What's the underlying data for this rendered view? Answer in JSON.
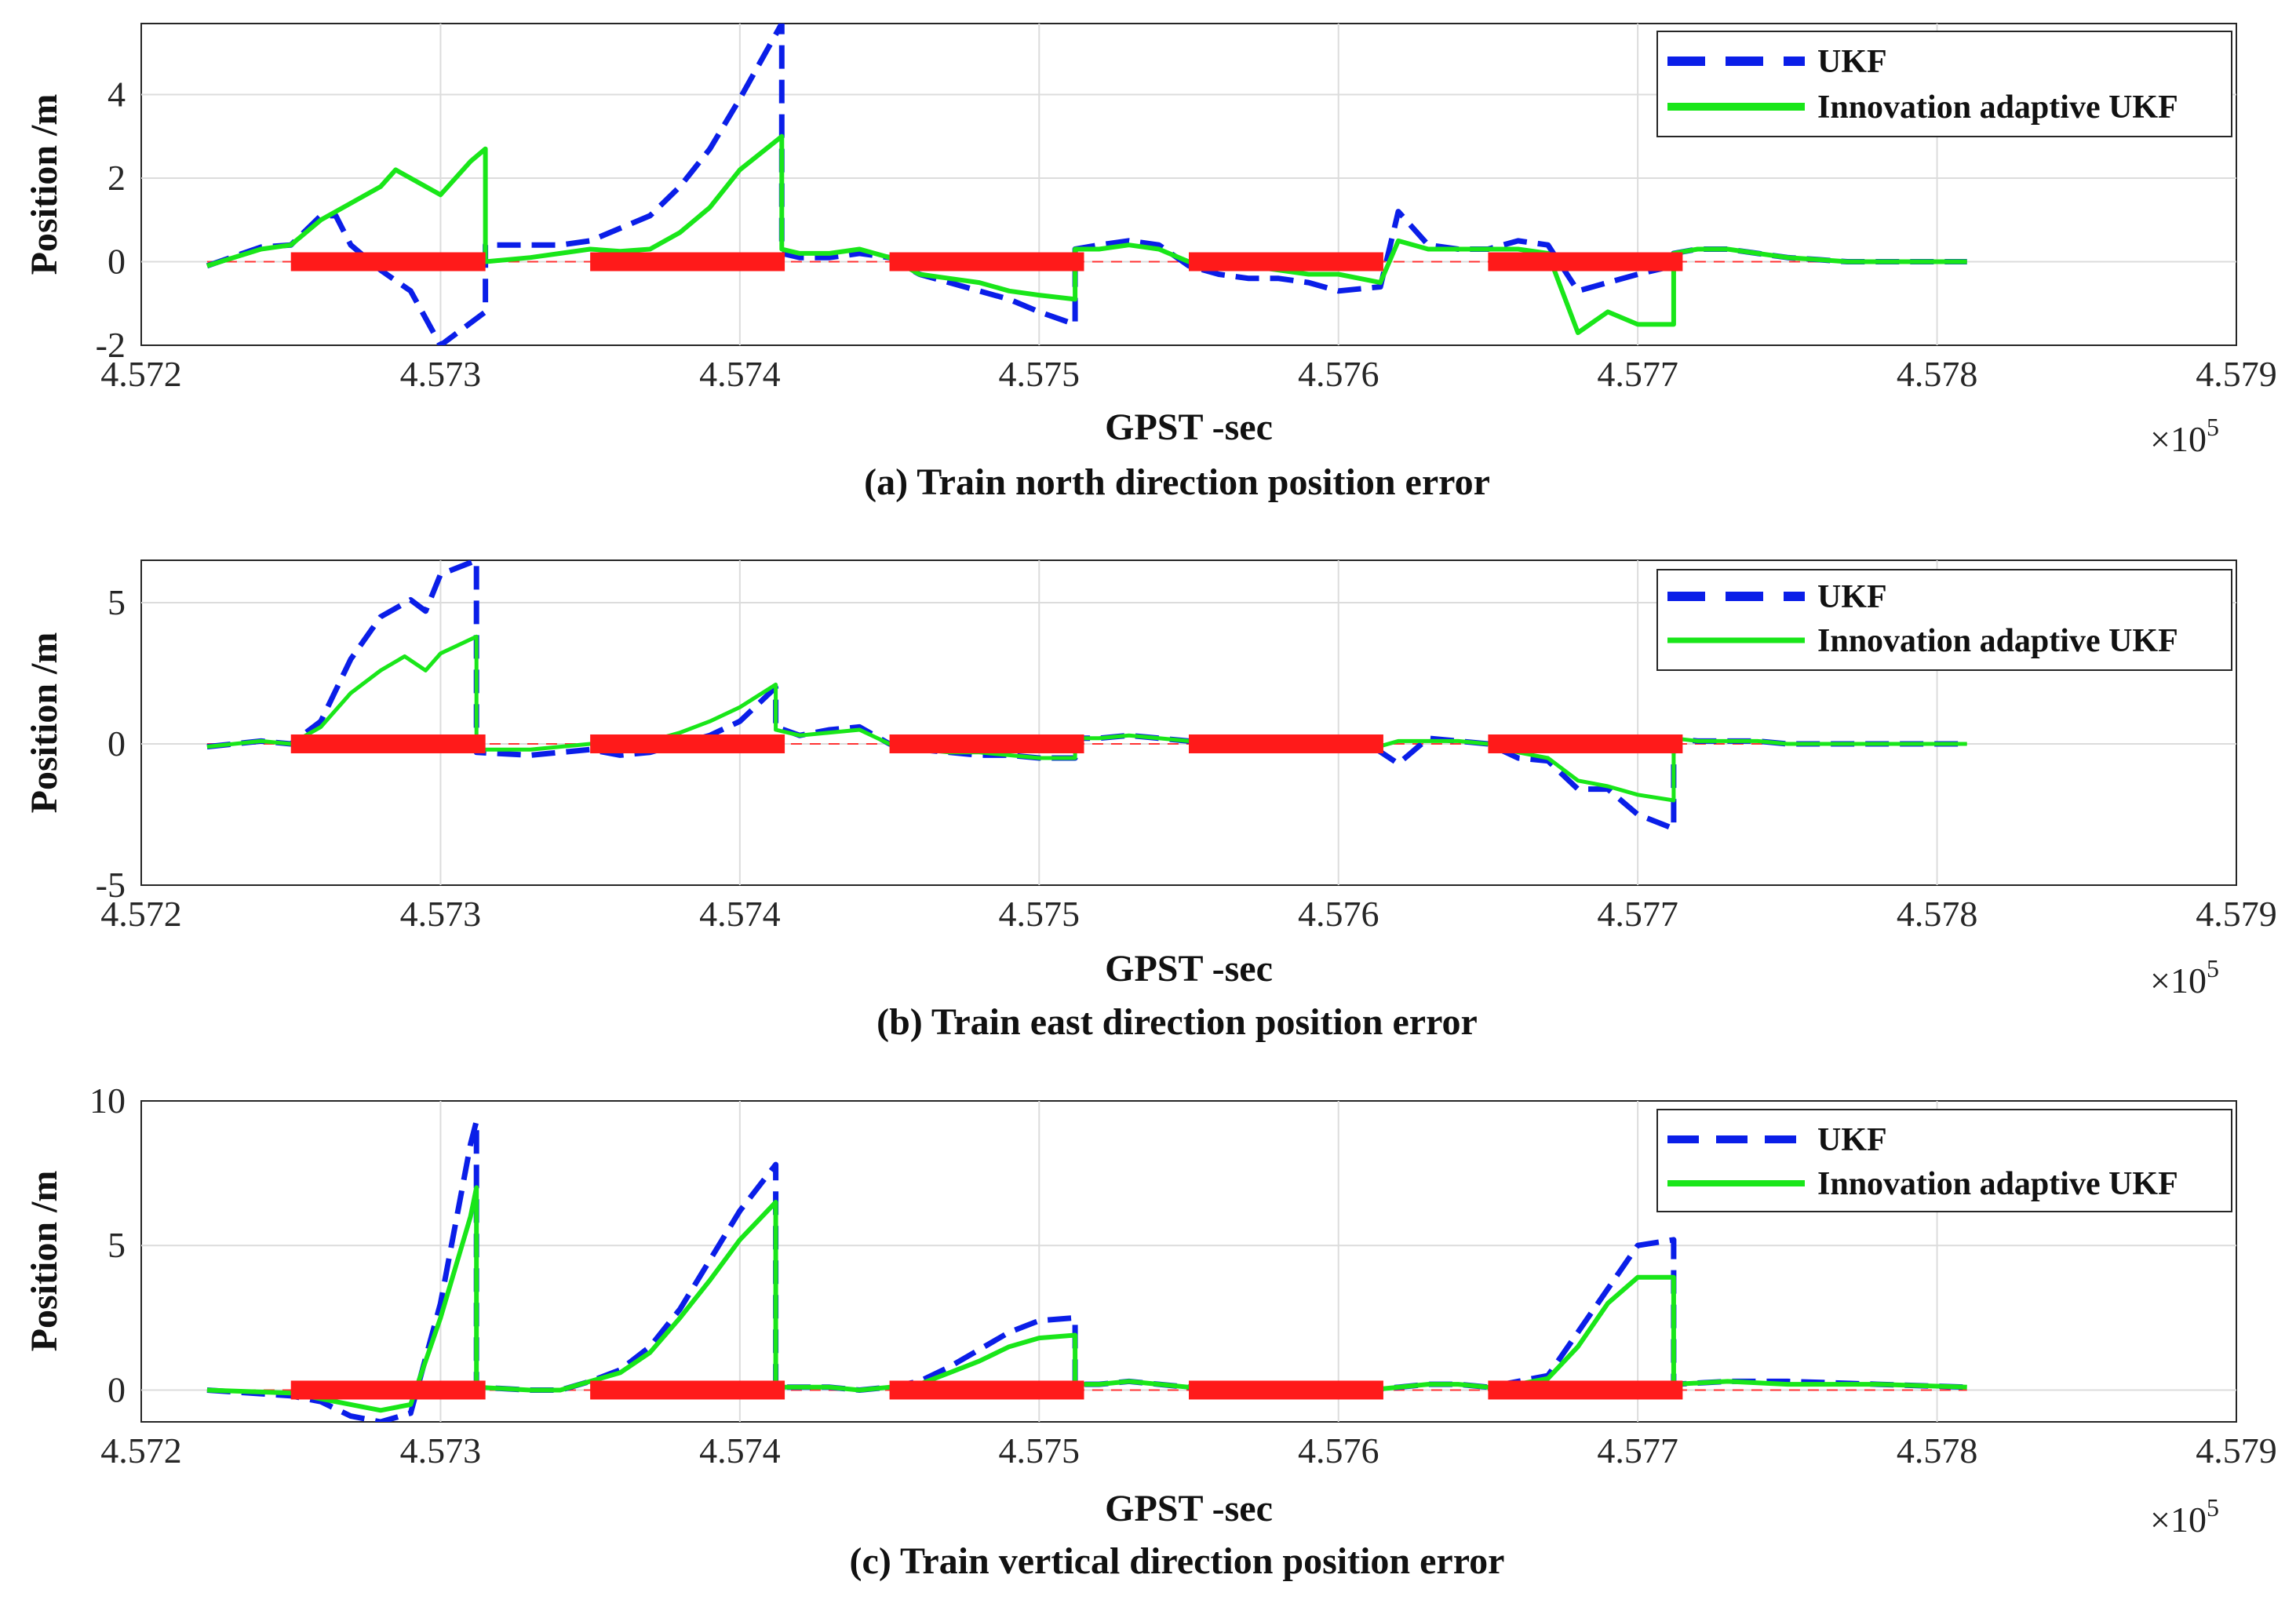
{
  "figure": {
    "colors": {
      "ukf": "#0a1ee8",
      "iaukf": "#19e619",
      "outage": "#ff1a1a",
      "reference": "#ff3333"
    },
    "x_exponent_base": "×10",
    "x_exponent_power": "5"
  },
  "chart_data": [
    {
      "type": "line",
      "caption": "(a) Train north direction position error",
      "xlabel": "GPST -sec",
      "ylabel": "Position /m",
      "xlim": [
        4.572,
        4.579
      ],
      "ylim": [
        -2,
        5.7
      ],
      "xticks": [
        4.572,
        4.573,
        4.574,
        4.575,
        4.576,
        4.577,
        4.578,
        4.579
      ],
      "xtick_labels": [
        "4.572",
        "4.573",
        "4.574",
        "4.575",
        "4.576",
        "4.577",
        "4.578",
        "4.579"
      ],
      "yticks": [
        -2,
        0,
        2,
        4
      ],
      "ytick_labels": [
        "-2",
        "0",
        "2",
        "4"
      ],
      "legend": [
        "UKF",
        "Innovation adaptive UKF"
      ],
      "outages": [
        [
          4.5725,
          4.57315
        ],
        [
          4.5735,
          4.57415
        ],
        [
          4.5745,
          4.57515
        ],
        [
          4.5755,
          4.57615
        ],
        [
          4.5765,
          4.57715
        ]
      ],
      "series": [
        {
          "name": "UKF",
          "style": "dashed",
          "x": [
            4.57222,
            4.5724,
            4.5725,
            4.5726,
            4.57265,
            4.5727,
            4.5728,
            4.5729,
            4.573,
            4.57315,
            4.57315,
            4.5733,
            4.5734,
            4.5735,
            4.5736,
            4.5737,
            4.5738,
            4.5739,
            4.574,
            4.57414,
            4.57414,
            4.5742,
            4.5743,
            4.5744,
            4.5745,
            4.5746,
            4.5747,
            4.5748,
            4.5749,
            4.575,
            4.57512,
            4.57512,
            4.5752,
            4.5753,
            4.5754,
            4.5755,
            4.5756,
            4.5757,
            4.5758,
            4.5759,
            4.576,
            4.57614,
            4.5762,
            4.5763,
            4.5764,
            4.5765,
            4.5766,
            4.5767,
            4.5768,
            4.5769,
            4.577,
            4.57712,
            4.57712,
            4.5772,
            4.5773,
            4.5774,
            4.5775,
            4.5776,
            4.5777,
            4.5778,
            4.5781
          ],
          "y": [
            -0.1,
            0.35,
            0.4,
            1.1,
            1.1,
            0.4,
            -0.2,
            -0.7,
            -2.0,
            -1.2,
            0.4,
            0.4,
            0.4,
            0.5,
            0.8,
            1.1,
            1.8,
            2.7,
            3.9,
            5.7,
            0.2,
            0.1,
            0.1,
            0.2,
            0.1,
            -0.3,
            -0.5,
            -0.7,
            -0.9,
            -1.2,
            -1.5,
            0.3,
            0.4,
            0.5,
            0.4,
            -0.1,
            -0.3,
            -0.4,
            -0.4,
            -0.5,
            -0.7,
            -0.6,
            1.2,
            0.4,
            0.3,
            0.3,
            0.5,
            0.4,
            -0.7,
            -0.5,
            -0.3,
            -0.1,
            0.2,
            0.3,
            0.3,
            0.2,
            0.1,
            0.05,
            0.0,
            0.0,
            0.0
          ]
        },
        {
          "name": "Innovation adaptive UKF",
          "style": "solid",
          "x": [
            4.57222,
            4.5724,
            4.5725,
            4.5726,
            4.5727,
            4.5728,
            4.57285,
            4.573,
            4.5731,
            4.57315,
            4.57315,
            4.5733,
            4.5734,
            4.5735,
            4.5736,
            4.5737,
            4.5738,
            4.5739,
            4.574,
            4.57414,
            4.57414,
            4.5742,
            4.5743,
            4.5744,
            4.5745,
            4.5746,
            4.5747,
            4.5748,
            4.5749,
            4.575,
            4.57512,
            4.57512,
            4.5752,
            4.5753,
            4.5754,
            4.5755,
            4.5756,
            4.5757,
            4.5758,
            4.5759,
            4.576,
            4.57614,
            4.5762,
            4.5763,
            4.5764,
            4.5765,
            4.5766,
            4.5767,
            4.5768,
            4.5769,
            4.577,
            4.57712,
            4.57712,
            4.5772,
            4.5773,
            4.5774,
            4.5775,
            4.5776,
            4.5777,
            4.5778,
            4.5781
          ],
          "y": [
            -0.1,
            0.3,
            0.4,
            1.0,
            1.4,
            1.8,
            2.2,
            1.6,
            2.4,
            2.7,
            0.0,
            0.1,
            0.2,
            0.3,
            0.25,
            0.3,
            0.7,
            1.3,
            2.2,
            3.0,
            0.3,
            0.2,
            0.2,
            0.3,
            0.1,
            -0.3,
            -0.4,
            -0.5,
            -0.7,
            -0.8,
            -0.9,
            0.3,
            0.3,
            0.4,
            0.3,
            0.0,
            -0.1,
            -0.1,
            -0.2,
            -0.3,
            -0.3,
            -0.5,
            0.5,
            0.3,
            0.3,
            0.3,
            0.3,
            0.2,
            -1.7,
            -1.2,
            -1.5,
            -1.5,
            0.2,
            0.3,
            0.3,
            0.2,
            0.1,
            0.05,
            0.0,
            0.0,
            0.0
          ]
        }
      ]
    },
    {
      "type": "line",
      "caption": "(b) Train east direction position error",
      "xlabel": "GPST -sec",
      "ylabel": "Position /m",
      "xlim": [
        4.572,
        4.579
      ],
      "ylim": [
        -5,
        6.5
      ],
      "xticks": [
        4.572,
        4.573,
        4.574,
        4.575,
        4.576,
        4.577,
        4.578,
        4.579
      ],
      "xtick_labels": [
        "4.572",
        "4.573",
        "4.574",
        "4.575",
        "4.576",
        "4.577",
        "4.578",
        "4.579"
      ],
      "yticks": [
        -5,
        0,
        5
      ],
      "ytick_labels": [
        "-5",
        "0",
        "5"
      ],
      "legend": [
        "UKF",
        "Innovation adaptive UKF"
      ],
      "outages": [
        [
          4.5725,
          4.57315
        ],
        [
          4.5735,
          4.57415
        ],
        [
          4.5745,
          4.57515
        ],
        [
          4.5755,
          4.57615
        ],
        [
          4.5765,
          4.57715
        ]
      ],
      "series": [
        {
          "name": "UKF",
          "style": "dashed",
          "x": [
            4.57222,
            4.5724,
            4.5725,
            4.5726,
            4.5727,
            4.5728,
            4.5729,
            4.57295,
            4.573,
            4.57312,
            4.57312,
            4.5733,
            4.5734,
            4.5735,
            4.5736,
            4.5737,
            4.5738,
            4.5739,
            4.574,
            4.57412,
            4.57412,
            4.5742,
            4.5743,
            4.5744,
            4.5745,
            4.5746,
            4.5747,
            4.5748,
            4.5749,
            4.575,
            4.57512,
            4.57512,
            4.5752,
            4.5753,
            4.5754,
            4.5755,
            4.5756,
            4.5757,
            4.5758,
            4.5759,
            4.576,
            4.5761,
            4.5762,
            4.5763,
            4.5764,
            4.5765,
            4.5766,
            4.5767,
            4.5768,
            4.5769,
            4.577,
            4.57712,
            4.57712,
            4.5772,
            4.5773,
            4.5774,
            4.5775,
            4.5776,
            4.5777,
            4.5778,
            4.5781
          ],
          "y": [
            -0.1,
            0.1,
            0.0,
            0.8,
            3.0,
            4.5,
            5.1,
            4.7,
            6.0,
            6.5,
            -0.3,
            -0.4,
            -0.3,
            -0.2,
            -0.4,
            -0.3,
            0.0,
            0.3,
            0.8,
            2.0,
            0.6,
            0.3,
            0.5,
            0.6,
            0.0,
            -0.2,
            -0.3,
            -0.4,
            -0.4,
            -0.5,
            -0.5,
            0.2,
            0.2,
            0.3,
            0.2,
            0.1,
            0.1,
            0.1,
            0.1,
            0.1,
            0.0,
            0.0,
            -0.7,
            0.2,
            0.1,
            0.0,
            -0.5,
            -0.6,
            -1.6,
            -1.6,
            -2.5,
            -3.0,
            0.2,
            0.1,
            0.1,
            0.1,
            0.0,
            0.0,
            0.0,
            0.0,
            0.0
          ]
        },
        {
          "name": "Innovation adaptive UKF",
          "style": "solid",
          "x": [
            4.57222,
            4.5724,
            4.5725,
            4.5726,
            4.5727,
            4.5728,
            4.57288,
            4.57295,
            4.573,
            4.57312,
            4.57312,
            4.5733,
            4.5734,
            4.5735,
            4.5736,
            4.5737,
            4.5738,
            4.5739,
            4.574,
            4.57412,
            4.57412,
            4.5742,
            4.5743,
            4.5744,
            4.5745,
            4.5746,
            4.5747,
            4.5748,
            4.5749,
            4.575,
            4.57512,
            4.57512,
            4.5752,
            4.5753,
            4.5754,
            4.5755,
            4.5756,
            4.5757,
            4.5758,
            4.5759,
            4.576,
            4.5761,
            4.5762,
            4.5763,
            4.5764,
            4.5765,
            4.5766,
            4.5767,
            4.5768,
            4.5769,
            4.577,
            4.57712,
            4.57712,
            4.5772,
            4.5773,
            4.5774,
            4.5775,
            4.5776,
            4.5777,
            4.5778,
            4.5781
          ],
          "y": [
            -0.1,
            0.1,
            0.0,
            0.6,
            1.8,
            2.6,
            3.1,
            2.6,
            3.2,
            3.8,
            -0.2,
            -0.2,
            -0.1,
            0.0,
            0.0,
            0.1,
            0.4,
            0.8,
            1.3,
            2.1,
            0.5,
            0.3,
            0.4,
            0.5,
            0.0,
            -0.2,
            -0.3,
            -0.3,
            -0.4,
            -0.5,
            -0.5,
            0.2,
            0.2,
            0.3,
            0.2,
            0.1,
            0.1,
            0.1,
            0.1,
            0.0,
            0.0,
            -0.2,
            0.1,
            0.1,
            0.1,
            0.0,
            -0.3,
            -0.5,
            -1.3,
            -1.5,
            -1.8,
            -2.0,
            0.2,
            0.1,
            0.1,
            0.1,
            0.0,
            0.0,
            0.0,
            0.0,
            0.0
          ]
        }
      ]
    },
    {
      "type": "line",
      "caption": "(c) Train vertical direction position error",
      "xlabel": "GPST -sec",
      "ylabel": "Position /m",
      "xlim": [
        4.572,
        4.579
      ],
      "ylim": [
        -1.1,
        10
      ],
      "xticks": [
        4.572,
        4.573,
        4.574,
        4.575,
        4.576,
        4.577,
        4.578,
        4.579
      ],
      "xtick_labels": [
        "4.572",
        "4.573",
        "4.574",
        "4.575",
        "4.576",
        "4.577",
        "4.578",
        "4.579"
      ],
      "yticks": [
        0,
        5,
        10
      ],
      "ytick_labels": [
        "0",
        "5",
        "10"
      ],
      "legend": [
        "UKF",
        "Innovation adaptive UKF"
      ],
      "outages": [
        [
          4.5725,
          4.57315
        ],
        [
          4.5735,
          4.57415
        ],
        [
          4.5745,
          4.57515
        ],
        [
          4.5755,
          4.57615
        ],
        [
          4.5765,
          4.57715
        ]
      ],
      "series": [
        {
          "name": "UKF",
          "style": "dashed",
          "x": [
            4.57222,
            4.5725,
            4.5726,
            4.5727,
            4.5728,
            4.5729,
            4.573,
            4.5731,
            4.57312,
            4.57312,
            4.5733,
            4.5734,
            4.5735,
            4.5736,
            4.5737,
            4.5738,
            4.5739,
            4.574,
            4.57412,
            4.57412,
            4.5743,
            4.5744,
            4.5745,
            4.5746,
            4.5747,
            4.5748,
            4.5749,
            4.575,
            4.57512,
            4.57512,
            4.5752,
            4.5753,
            4.5754,
            4.5755,
            4.5756,
            4.5757,
            4.5758,
            4.5759,
            4.576,
            4.5761,
            4.5762,
            4.5763,
            4.5764,
            4.5765,
            4.5766,
            4.5767,
            4.5768,
            4.5769,
            4.577,
            4.57712,
            4.57712,
            4.5773,
            4.5775,
            4.5778,
            4.5781
          ],
          "y": [
            0.0,
            -0.2,
            -0.4,
            -0.9,
            -1.1,
            -0.8,
            3.0,
            8.5,
            9.3,
            0.1,
            0.0,
            0.0,
            0.3,
            0.7,
            1.5,
            2.8,
            4.5,
            6.2,
            7.8,
            0.1,
            0.1,
            0.0,
            0.1,
            0.3,
            0.8,
            1.4,
            2.0,
            2.4,
            2.5,
            0.2,
            0.2,
            0.3,
            0.2,
            0.1,
            0.2,
            0.2,
            0.2,
            0.1,
            0.1,
            0.0,
            0.1,
            0.2,
            0.2,
            0.1,
            0.3,
            0.5,
            2.0,
            3.5,
            5.0,
            5.2,
            0.2,
            0.3,
            0.3,
            0.2,
            0.1
          ]
        },
        {
          "name": "Innovation adaptive UKF",
          "style": "solid",
          "x": [
            4.57222,
            4.5725,
            4.5726,
            4.5727,
            4.5728,
            4.5729,
            4.573,
            4.5731,
            4.57312,
            4.57312,
            4.5733,
            4.5734,
            4.5735,
            4.5736,
            4.5737,
            4.5738,
            4.5739,
            4.574,
            4.57412,
            4.57412,
            4.5743,
            4.5744,
            4.5745,
            4.5746,
            4.5747,
            4.5748,
            4.5749,
            4.575,
            4.57512,
            4.57512,
            4.5752,
            4.5753,
            4.5754,
            4.5755,
            4.5756,
            4.5757,
            4.5758,
            4.5759,
            4.576,
            4.5761,
            4.5762,
            4.5763,
            4.5764,
            4.5765,
            4.5766,
            4.5767,
            4.5768,
            4.5769,
            4.577,
            4.57712,
            4.57712,
            4.5773,
            4.5775,
            4.5778,
            4.5781
          ],
          "y": [
            0.0,
            -0.1,
            -0.3,
            -0.5,
            -0.7,
            -0.5,
            2.5,
            6.0,
            7.0,
            0.1,
            0.0,
            0.0,
            0.3,
            0.6,
            1.3,
            2.5,
            3.8,
            5.2,
            6.5,
            0.1,
            0.1,
            0.0,
            0.1,
            0.2,
            0.6,
            1.0,
            1.5,
            1.8,
            1.9,
            0.2,
            0.2,
            0.3,
            0.2,
            0.1,
            0.2,
            0.2,
            0.2,
            0.1,
            0.1,
            0.0,
            0.1,
            0.2,
            0.2,
            0.1,
            0.2,
            0.4,
            1.5,
            3.0,
            3.9,
            3.9,
            0.2,
            0.3,
            0.2,
            0.2,
            0.1
          ]
        }
      ]
    }
  ]
}
